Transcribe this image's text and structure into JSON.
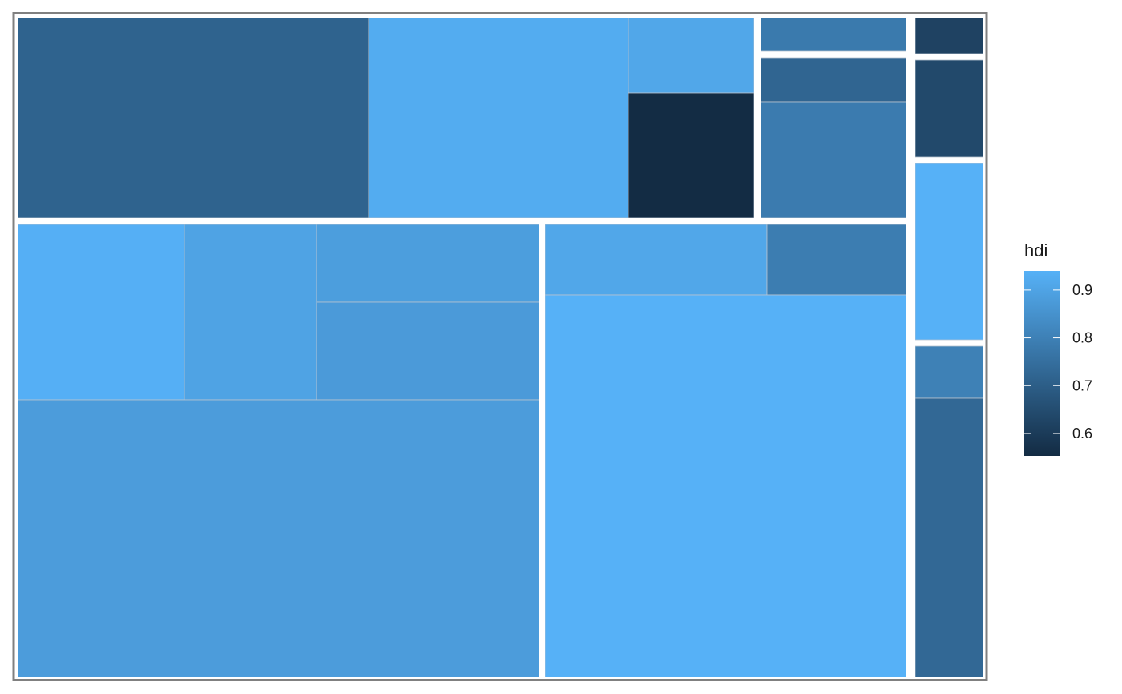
{
  "chart_data": {
    "type": "treemap",
    "fill_variable": "hdi",
    "legend": {
      "title": "hdi",
      "position": "right",
      "ticks": [
        0.6,
        0.7,
        0.8,
        0.9
      ],
      "tick_labels": [
        "0.6",
        "0.7",
        "0.8",
        "0.9"
      ],
      "range": [
        0.553,
        0.94
      ],
      "color_low": "#132b43",
      "color_high": "#56b1f7"
    },
    "groups": [
      {
        "tiles": [
          {
            "hdi": 0.715
          },
          {
            "hdi": 0.925
          },
          {
            "hdi": 0.91
          },
          {
            "hdi": 0.555
          }
        ]
      },
      {
        "tiles": [
          {
            "hdi": 0.78
          },
          {
            "hdi": 0.72
          },
          {
            "hdi": 0.785
          }
        ]
      },
      {
        "tiles": [
          {
            "hdi": 0.935
          },
          {
            "hdi": 0.9
          },
          {
            "hdi": 0.885
          },
          {
            "hdi": 0.875
          },
          {
            "hdi": 0.88
          }
        ]
      },
      {
        "tiles": [
          {
            "hdi": 0.91
          },
          {
            "hdi": 0.79
          },
          {
            "hdi": 0.94
          }
        ]
      },
      {
        "tiles": [
          {
            "hdi": 0.62
          },
          {
            "hdi": 0.64
          },
          {
            "hdi": 0.94
          },
          {
            "hdi": 0.8
          },
          {
            "hdi": 0.73
          }
        ]
      }
    ]
  }
}
